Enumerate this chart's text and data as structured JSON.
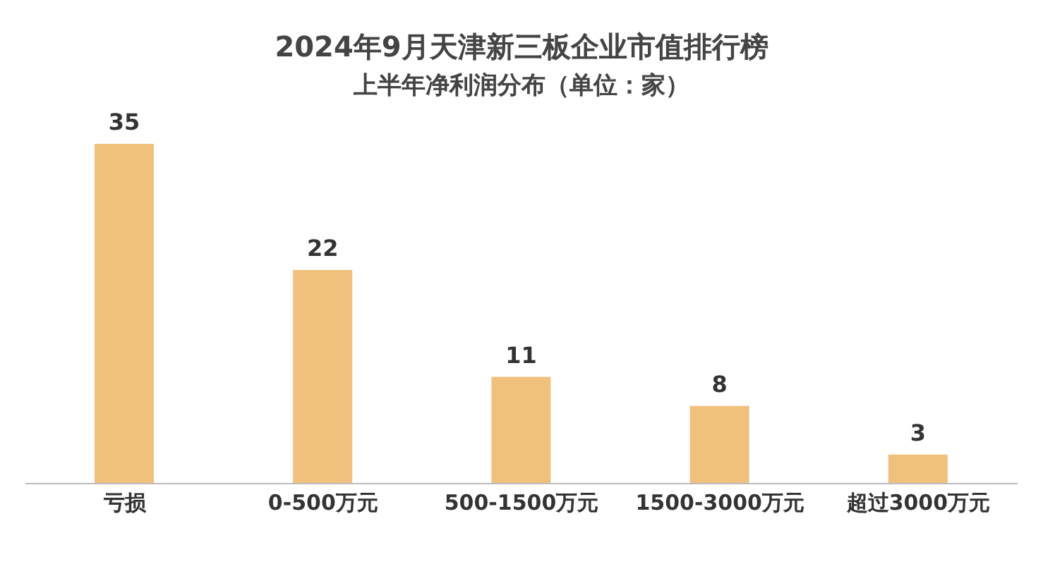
{
  "chart_data": {
    "type": "bar",
    "title": "2024年9月天津新三板企业市值排行榜",
    "subtitle": "上半年净利润分布（单位：家）",
    "categories": [
      "亏损",
      "0-500万元",
      "500-1500万元",
      "1500-3000万元",
      "超过3000万元"
    ],
    "values": [
      35,
      22,
      11,
      8,
      3
    ],
    "color": "#f0c07d",
    "data_labels": true
  }
}
